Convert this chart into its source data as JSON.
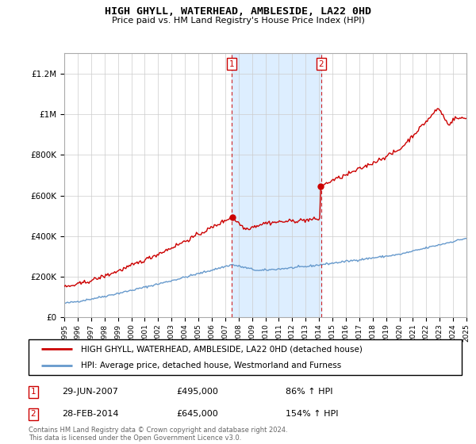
{
  "title": "HIGH GHYLL, WATERHEAD, AMBLESIDE, LA22 0HD",
  "subtitle": "Price paid vs. HM Land Registry's House Price Index (HPI)",
  "red_label": "HIGH GHYLL, WATERHEAD, AMBLESIDE, LA22 0HD (detached house)",
  "blue_label": "HPI: Average price, detached house, Westmorland and Furness",
  "annotation1_date": "29-JUN-2007",
  "annotation1_price": "£495,000",
  "annotation1_hpi": "86% ↑ HPI",
  "annotation2_date": "28-FEB-2014",
  "annotation2_price": "£645,000",
  "annotation2_hpi": "154% ↑ HPI",
  "footnote": "Contains HM Land Registry data © Crown copyright and database right 2024.\nThis data is licensed under the Open Government Licence v3.0.",
  "red_color": "#cc0000",
  "blue_color": "#6699cc",
  "shading_color": "#ddeeff",
  "marker1_x": 2007.5,
  "marker2_x": 2014.17,
  "ylim_max": 1300000,
  "xmin": 1995,
  "xmax": 2025
}
